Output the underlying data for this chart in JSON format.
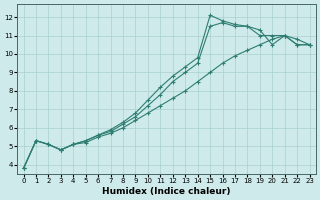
{
  "xlabel": "Humidex (Indice chaleur)",
  "xlim": [
    -0.5,
    23.5
  ],
  "ylim": [
    3.5,
    12.7
  ],
  "xticks": [
    0,
    1,
    2,
    3,
    4,
    5,
    6,
    7,
    8,
    9,
    10,
    11,
    12,
    13,
    14,
    15,
    16,
    17,
    18,
    19,
    20,
    21,
    22,
    23
  ],
  "yticks": [
    4,
    5,
    6,
    7,
    8,
    9,
    10,
    11,
    12
  ],
  "bg_color": "#ceeaea",
  "grid_color": "#aacfcf",
  "line_color": "#2e7d72",
  "line1_x": [
    0,
    1,
    2,
    3,
    4,
    5,
    6,
    7,
    8,
    9,
    10,
    11,
    12,
    13,
    14,
    15,
    16,
    17,
    18,
    19,
    20,
    21,
    22,
    23
  ],
  "line1_y": [
    3.8,
    5.3,
    5.1,
    4.8,
    5.1,
    5.2,
    5.5,
    5.7,
    6.0,
    6.4,
    6.8,
    7.2,
    7.6,
    8.0,
    8.5,
    9.0,
    9.5,
    9.9,
    10.2,
    10.5,
    10.8,
    11.0,
    10.5,
    10.5
  ],
  "line2_x": [
    0,
    1,
    2,
    3,
    4,
    5,
    6,
    7,
    8,
    9,
    10,
    11,
    12,
    13,
    14,
    15,
    16,
    17,
    18,
    19,
    20,
    21,
    22,
    23
  ],
  "line2_y": [
    3.8,
    5.3,
    5.1,
    4.8,
    5.1,
    5.3,
    5.6,
    5.8,
    6.2,
    6.6,
    7.2,
    7.8,
    8.5,
    9.0,
    9.5,
    11.5,
    11.7,
    11.5,
    11.5,
    11.0,
    11.0,
    11.0,
    10.5,
    10.5
  ],
  "line3_x": [
    0,
    1,
    2,
    3,
    4,
    5,
    6,
    7,
    8,
    9,
    10,
    11,
    12,
    13,
    14,
    15,
    16,
    17,
    18,
    19,
    20,
    21,
    22,
    23
  ],
  "line3_y": [
    3.8,
    5.3,
    5.1,
    4.8,
    5.1,
    5.3,
    5.6,
    5.9,
    6.3,
    6.8,
    7.5,
    8.2,
    8.8,
    9.3,
    9.8,
    12.1,
    11.8,
    11.6,
    11.5,
    11.3,
    10.5,
    11.0,
    10.8,
    10.5
  ]
}
